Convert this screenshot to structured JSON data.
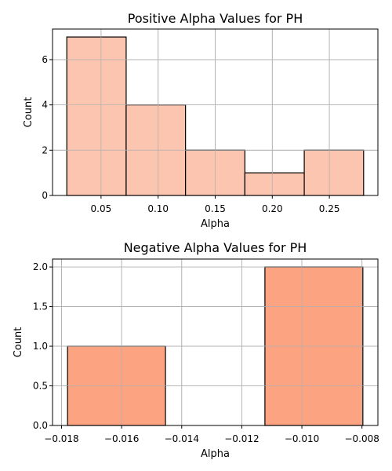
{
  "chart_data": [
    {
      "type": "histogram",
      "title": "Positive Alpha Values for PH",
      "xlabel": "Alpha",
      "ylabel": "Count",
      "xlim": [
        0.0075,
        0.2925
      ],
      "ylim": [
        0,
        7.35
      ],
      "xticks": [
        0.05,
        0.1,
        0.15,
        0.2,
        0.25
      ],
      "xtick_labels": [
        "0.05",
        "0.10",
        "0.15",
        "0.20",
        "0.25"
      ],
      "yticks": [
        0,
        2,
        4,
        6
      ],
      "ytick_labels": [
        "0",
        "2",
        "4",
        "6"
      ],
      "bins": [
        {
          "x0": 0.02,
          "x1": 0.072,
          "count": 7
        },
        {
          "x0": 0.072,
          "x1": 0.124,
          "count": 4
        },
        {
          "x0": 0.124,
          "x1": 0.176,
          "count": 2
        },
        {
          "x0": 0.176,
          "x1": 0.228,
          "count": 1
        },
        {
          "x0": 0.228,
          "x1": 0.28,
          "count": 2
        }
      ],
      "bar_color": "#fcc5b0",
      "edge_color": "#000000",
      "grid": true
    },
    {
      "type": "histogram",
      "title": "Negative Alpha Values for PH",
      "xlabel": "Alpha",
      "ylabel": "Count",
      "xlim": [
        -0.0183,
        -0.00747
      ],
      "ylim": [
        0,
        2.1
      ],
      "xticks": [
        -0.018,
        -0.016,
        -0.014,
        -0.012,
        -0.01,
        -0.008
      ],
      "xtick_labels": [
        "−0.018",
        "−0.016",
        "−0.014",
        "−0.012",
        "−0.010",
        "−0.008"
      ],
      "yticks": [
        0,
        0.5,
        1.0,
        1.5,
        2.0
      ],
      "ytick_labels": [
        "0.0",
        "0.5",
        "1.0",
        "1.5",
        "2.0"
      ],
      "bins": [
        {
          "x0": -0.0178,
          "x1": -0.01454,
          "count": 1
        },
        {
          "x0": -0.01454,
          "x1": -0.01123,
          "count": 0
        },
        {
          "x0": -0.01123,
          "x1": -0.00797,
          "count": 2
        }
      ],
      "bar_color": "#fca482",
      "edge_color": "#000000",
      "grid": true
    }
  ]
}
